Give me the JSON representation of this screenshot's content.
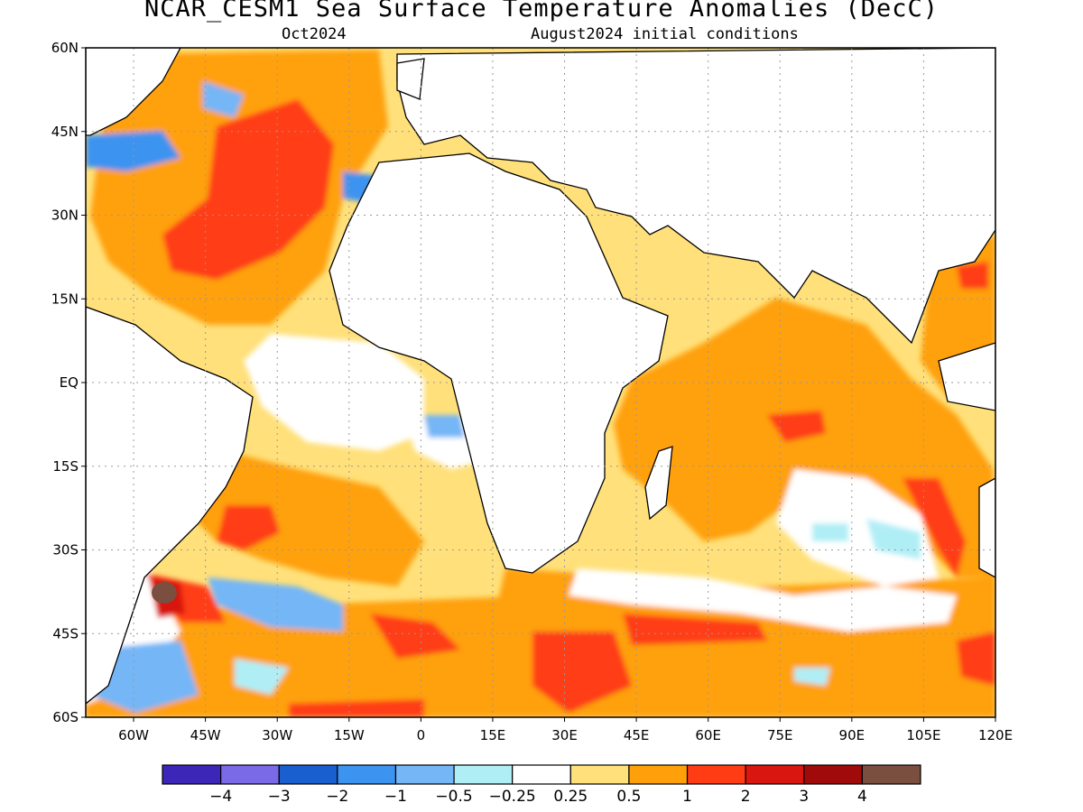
{
  "title": "NCAR_CESM1 Sea Surface Temperature Anomalies (DecC)",
  "forecast_month": "Oct2024",
  "initial_conditions": "August2024 initial conditions",
  "map": {
    "lon_range": [
      -70,
      120
    ],
    "lat_range": [
      -60,
      60
    ],
    "gridlines": true,
    "lat_labels": [
      "60N",
      "45N",
      "30N",
      "15N",
      "EQ",
      "15S",
      "30S",
      "45S",
      "60S"
    ],
    "lat_values": [
      60,
      45,
      30,
      15,
      0,
      -15,
      -30,
      -45,
      -60
    ],
    "lon_labels": [
      "60W",
      "45W",
      "30W",
      "15W",
      "0",
      "15E",
      "30E",
      "45E",
      "60E",
      "75E",
      "90E",
      "105E",
      "120E"
    ],
    "lon_values": [
      -60,
      -45,
      -30,
      -15,
      0,
      15,
      30,
      45,
      60,
      75,
      90,
      105,
      120
    ],
    "land_color": "#ffffff"
  },
  "colorbar": {
    "colors": [
      "#3b26b8",
      "#7a6ae8",
      "#1a5fcf",
      "#3c93f0",
      "#74b6f6",
      "#b0eef6",
      "#ffffff",
      "#ffe07a",
      "#ffa00a",
      "#ff3c14",
      "#d9160f",
      "#a00a0a",
      "#7a4f40"
    ],
    "labels": [
      "−4",
      "−3",
      "−2",
      "−1",
      "−0.5",
      "−0.25",
      "0.25",
      "0.5",
      "1",
      "2",
      "3",
      "4"
    ]
  }
}
